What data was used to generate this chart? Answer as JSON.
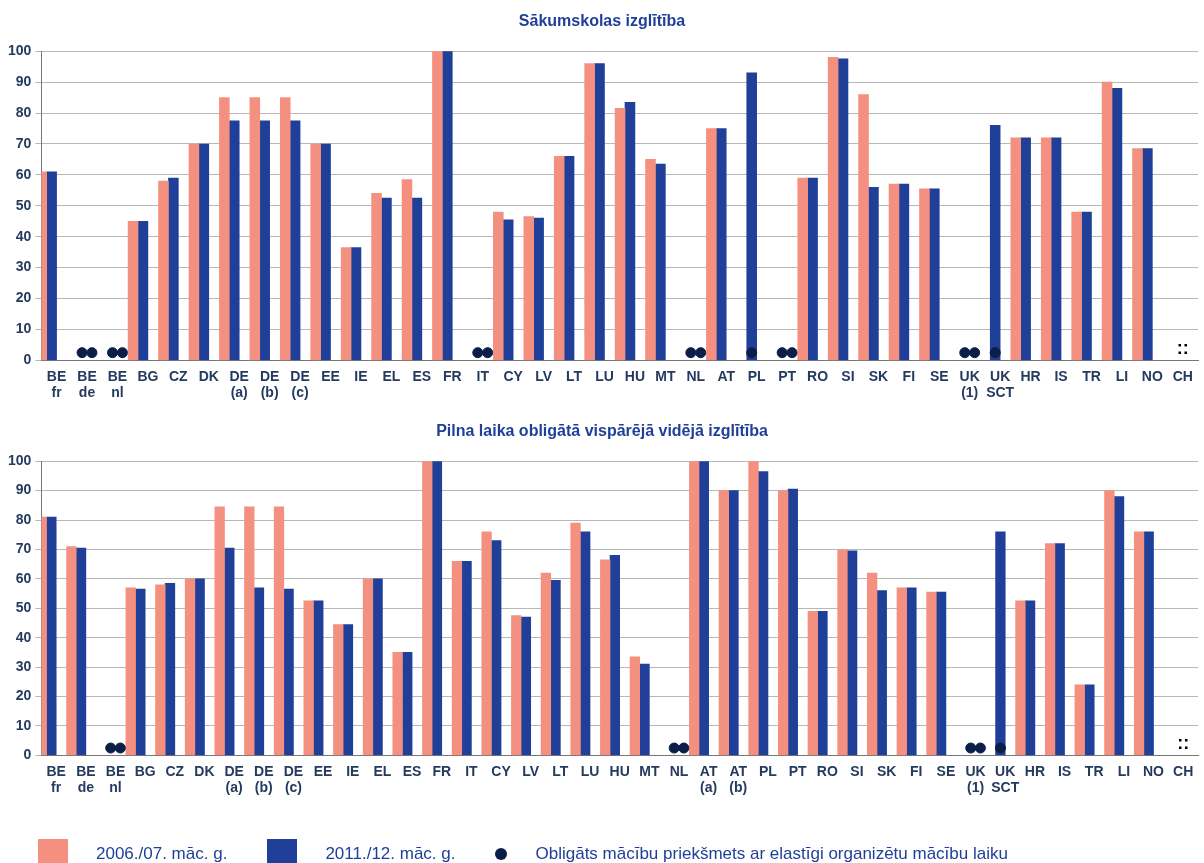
{
  "chart_data": [
    {
      "type": "bar",
      "title": "Sākumskolas izglītība",
      "categories": [
        "BE fr",
        "BE de",
        "BE nl",
        "BG",
        "CZ",
        "DK",
        "DE (a)",
        "DE (b)",
        "DE (c)",
        "EE",
        "IE",
        "EL",
        "ES",
        "FR",
        "IT",
        "CY",
        "LV",
        "LT",
        "LU",
        "HU",
        "MT",
        "NL",
        "AT",
        "PL",
        "PT",
        "RO",
        "SI",
        "SK",
        "FI",
        "SE",
        "UK (1)",
        "UK SCT",
        "HR",
        "IS",
        "TR",
        "LI",
        "NO",
        "CH"
      ],
      "series": [
        {
          "color": "#f4907f",
          "values": [
            61,
            null,
            null,
            45,
            58,
            70,
            85,
            85,
            85,
            70,
            36.5,
            54,
            58.5,
            100,
            null,
            48,
            46.5,
            66,
            96,
            81.5,
            65,
            null,
            75,
            null,
            null,
            59,
            98,
            86,
            57,
            55.5,
            null,
            null,
            72,
            72,
            48,
            90,
            68.5,
            null
          ]
        },
        {
          "color": "#1f3f99",
          "values": [
            61,
            null,
            null,
            45,
            59,
            70,
            77.5,
            77.5,
            77.5,
            70,
            36.5,
            52.5,
            52.5,
            100,
            null,
            45.5,
            46,
            66,
            96,
            83.5,
            63.5,
            null,
            75,
            93,
            null,
            59,
            97.5,
            56,
            57,
            55.5,
            null,
            76,
            72,
            72,
            48,
            88,
            68.5,
            null
          ]
        },
        {
          "type": "scatter",
          "color": "#0b1e4a",
          "marker": "circle",
          "x": [
            "BE de",
            "BE nl",
            "IT",
            "NL",
            "PL",
            "PT",
            "UK (1)",
            "UK SCT"
          ],
          "values": [
            2.5,
            2.5,
            2.5,
            2.5,
            2.5,
            2.5,
            2.5,
            2.5
          ]
        },
        {
          "type": "scatter",
          "color": "#0b1e4a",
          "marker": "circle",
          "x": [
            "BE de",
            "BE nl",
            "IT",
            "NL",
            "PT",
            "UK (1)"
          ],
          "values": [
            2.5,
            2.5,
            2.5,
            2.5,
            2.5,
            2.5
          ]
        }
      ],
      "ylim": [
        0,
        100
      ],
      "yticks": [
        0,
        10,
        20,
        30,
        40,
        50,
        60,
        70,
        80,
        90,
        100
      ],
      "grid": "y",
      "annotations": [
        "::"
      ]
    },
    {
      "type": "bar",
      "title": "Pilna laika obligātā vispārējā vidējā izglītība",
      "categories": [
        "BE fr",
        "BE de",
        "BE nl",
        "BG",
        "CZ",
        "DK",
        "DE (a)",
        "DE (b)",
        "DE (c)",
        "EE",
        "IE",
        "EL",
        "ES",
        "FR",
        "IT",
        "CY",
        "LV",
        "LT",
        "LU",
        "HU",
        "MT",
        "NL",
        "AT (a)",
        "AT (b)",
        "PL",
        "PT",
        "RO",
        "SI",
        "SK",
        "FI",
        "SE",
        "UK (1)",
        "UK SCT",
        "HR",
        "IS",
        "TR",
        "LI",
        "NO",
        "CH"
      ],
      "series": [
        {
          "name": "2006./07. māc. g.",
          "color": "#f4907f",
          "values": [
            81,
            71,
            null,
            57,
            58,
            60,
            84.5,
            84.5,
            84.5,
            52.5,
            44.5,
            60,
            35,
            100,
            66,
            76,
            47.5,
            62,
            79,
            66.5,
            33.5,
            null,
            100,
            90,
            100,
            90,
            49,
            70,
            62,
            57,
            55.5,
            null,
            null,
            52.5,
            72,
            24,
            90,
            76,
            null
          ]
        },
        {
          "name": "2011./12. māc. g.",
          "color": "#1f3f99",
          "values": [
            81,
            70.5,
            null,
            56.5,
            58.5,
            60,
            70.5,
            57,
            56.5,
            52.5,
            44.5,
            60,
            35,
            100,
            66,
            73,
            47,
            59.5,
            76,
            68,
            31,
            null,
            100,
            90,
            96.5,
            90.5,
            49,
            69.5,
            56,
            57,
            55.5,
            null,
            76,
            52.5,
            72,
            24,
            88,
            76,
            null
          ]
        },
        {
          "type": "scatter",
          "name": "Obligāts mācību priekšmets ar elastīgi organizētu mācību laiku",
          "color": "#0b1e4a",
          "marker": "circle",
          "x": [
            "BE nl",
            "NL",
            "UK (1)",
            "UK SCT"
          ],
          "values": [
            2.5,
            2.5,
            2.5,
            2.5
          ]
        },
        {
          "type": "scatter",
          "color": "#0b1e4a",
          "marker": "circle",
          "x": [
            "BE nl",
            "NL",
            "UK (1)"
          ],
          "values": [
            2.5,
            2.5,
            2.5
          ]
        }
      ],
      "ylim": [
        0,
        100
      ],
      "yticks": [
        0,
        10,
        20,
        30,
        40,
        50,
        60,
        70,
        80,
        90,
        100
      ],
      "grid": "y",
      "legend": "bottom",
      "annotations": [
        "::"
      ]
    }
  ]
}
